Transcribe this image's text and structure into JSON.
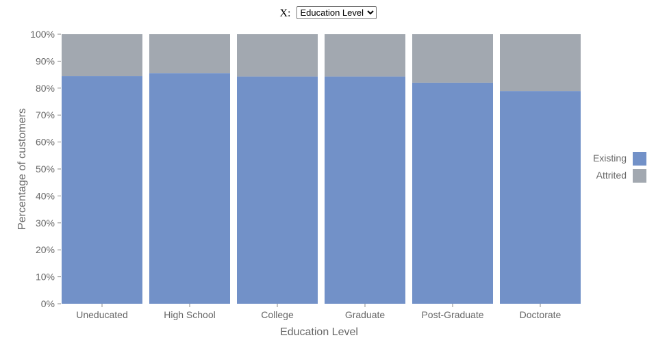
{
  "control": {
    "label": "X:",
    "selected": "Education Level",
    "options": [
      "Education Level"
    ]
  },
  "colors": {
    "existing": "#7291c8",
    "attrited": "#a2a8b0",
    "axis": "#888888",
    "text": "#666666"
  },
  "chart_data": {
    "type": "bar",
    "stacked": true,
    "normalized": true,
    "title": "",
    "xlabel": "Education Level",
    "ylabel": "Percentage of customers",
    "ylim": [
      0,
      100
    ],
    "yticks": [
      "0%",
      "10%",
      "20%",
      "30%",
      "40%",
      "50%",
      "60%",
      "70%",
      "80%",
      "90%",
      "100%"
    ],
    "categories": [
      "Uneducated",
      "High School",
      "College",
      "Graduate",
      "Post-Graduate",
      "Doctorate"
    ],
    "series": [
      {
        "name": "Existing",
        "values": [
          84.5,
          85.5,
          84.3,
          84.3,
          82.0,
          78.9
        ]
      },
      {
        "name": "Attrited",
        "values": [
          15.5,
          14.5,
          15.7,
          15.7,
          18.0,
          21.1
        ]
      }
    ],
    "legend": {
      "position": "right",
      "entries": [
        "Existing",
        "Attrited"
      ]
    },
    "grid": false
  }
}
